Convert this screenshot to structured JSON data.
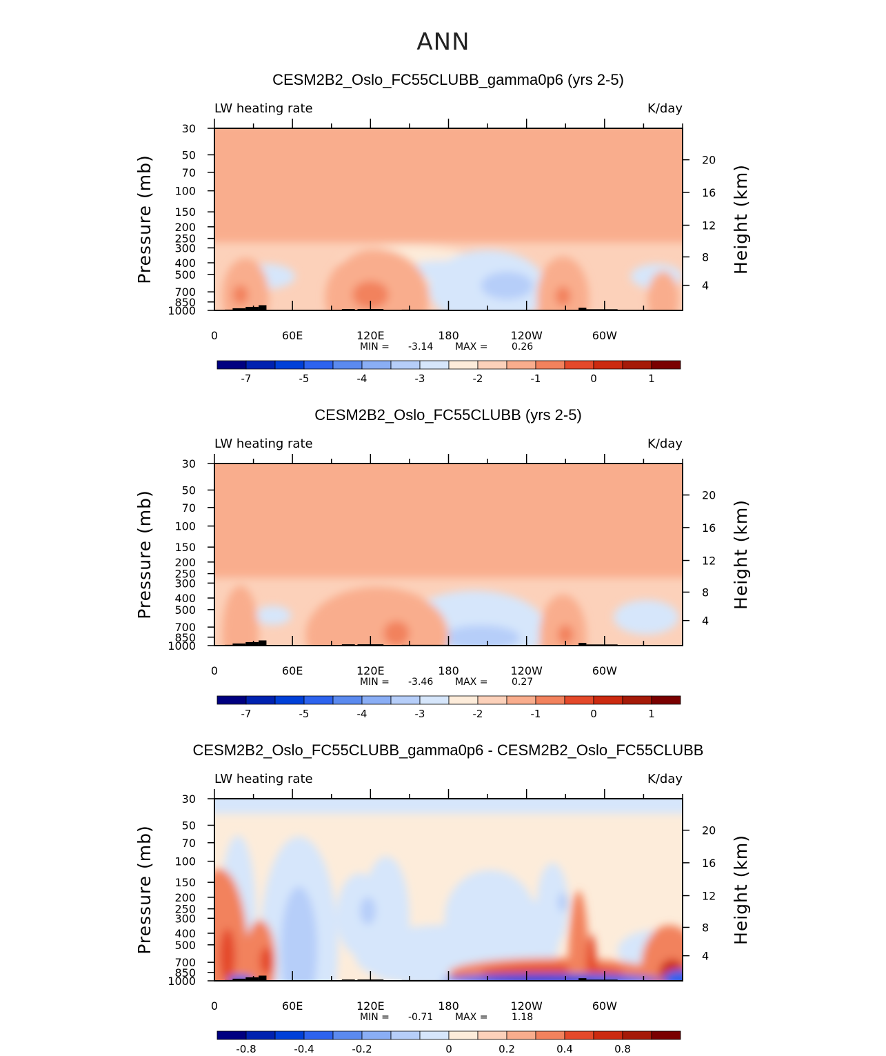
{
  "super_title": "ANN",
  "colors": {
    "cmap_std": [
      "#000080",
      "#0022b0",
      "#0040d8",
      "#2d63ee",
      "#5b8aef",
      "#8aaef5",
      "#b6cef9",
      "#d6e6fb",
      "#fdecda",
      "#fcd1ba",
      "#f9ad8d",
      "#f2825d",
      "#e4492a",
      "#cc2a10",
      "#a51a08",
      "#7a0000"
    ],
    "topography": "#000000",
    "frame": "#000000"
  },
  "chart_data": [
    {
      "type": "heatmap",
      "title": "CESM2B2_Oslo_FC55CLUBB_gamma0p6 (yrs 2-5)",
      "variable": "LW heating rate",
      "units": "K/day",
      "xlabel": "",
      "ylabel_left": "Pressure (mb)",
      "ylabel_right": "Height (km)",
      "x_range": [
        0,
        360
      ],
      "x_ticks": [
        "0",
        "60E",
        "120E",
        "180",
        "120W",
        "60W"
      ],
      "y_ticks_left": [
        "30",
        "50",
        "70",
        "100",
        "150",
        "200",
        "250",
        "300",
        "400",
        "500",
        "700",
        "850",
        "1000"
      ],
      "y_ticks_right": [
        "20",
        "16",
        "12",
        "8",
        "4"
      ],
      "min_label": "MIN =",
      "min_value": "-3.14",
      "max_label": "MAX =",
      "max_value": "0.26",
      "colorbar_labels": [
        "-7",
        "-5",
        "-4",
        "-3",
        "-2",
        "-1",
        "0",
        "1"
      ],
      "colorbar_levels": 16
    },
    {
      "type": "heatmap",
      "title": "CESM2B2_Oslo_FC55CLUBB (yrs 2-5)",
      "variable": "LW heating rate",
      "units": "K/day",
      "xlabel": "",
      "ylabel_left": "Pressure (mb)",
      "ylabel_right": "Height (km)",
      "x_range": [
        0,
        360
      ],
      "x_ticks": [
        "0",
        "60E",
        "120E",
        "180",
        "120W",
        "60W"
      ],
      "y_ticks_left": [
        "30",
        "50",
        "70",
        "100",
        "150",
        "200",
        "250",
        "300",
        "400",
        "500",
        "700",
        "850",
        "1000"
      ],
      "y_ticks_right": [
        "20",
        "16",
        "12",
        "8",
        "4"
      ],
      "min_label": "MIN =",
      "min_value": "-3.46",
      "max_label": "MAX =",
      "max_value": "0.27",
      "colorbar_labels": [
        "-7",
        "-5",
        "-4",
        "-3",
        "-2",
        "-1",
        "0",
        "1"
      ],
      "colorbar_levels": 16
    },
    {
      "type": "heatmap",
      "title": "CESM2B2_Oslo_FC55CLUBB_gamma0p6 - CESM2B2_Oslo_FC55CLUBB",
      "variable": "LW heating rate",
      "units": "K/day",
      "xlabel": "",
      "ylabel_left": "Pressure (mb)",
      "ylabel_right": "Height (km)",
      "x_range": [
        0,
        360
      ],
      "x_ticks": [
        "0",
        "60E",
        "120E",
        "180",
        "120W",
        "60W"
      ],
      "y_ticks_left": [
        "30",
        "50",
        "70",
        "100",
        "150",
        "200",
        "250",
        "300",
        "400",
        "500",
        "700",
        "850",
        "1000"
      ],
      "y_ticks_right": [
        "20",
        "16",
        "12",
        "8",
        "4"
      ],
      "min_label": "MIN =",
      "min_value": "-0.71",
      "max_label": "MAX =",
      "max_value": "1.18",
      "colorbar_labels": [
        "-0.8",
        "-0.4",
        "-0.2",
        "0",
        "0.2",
        "0.4",
        "0.8"
      ],
      "colorbar_levels": 16
    }
  ]
}
